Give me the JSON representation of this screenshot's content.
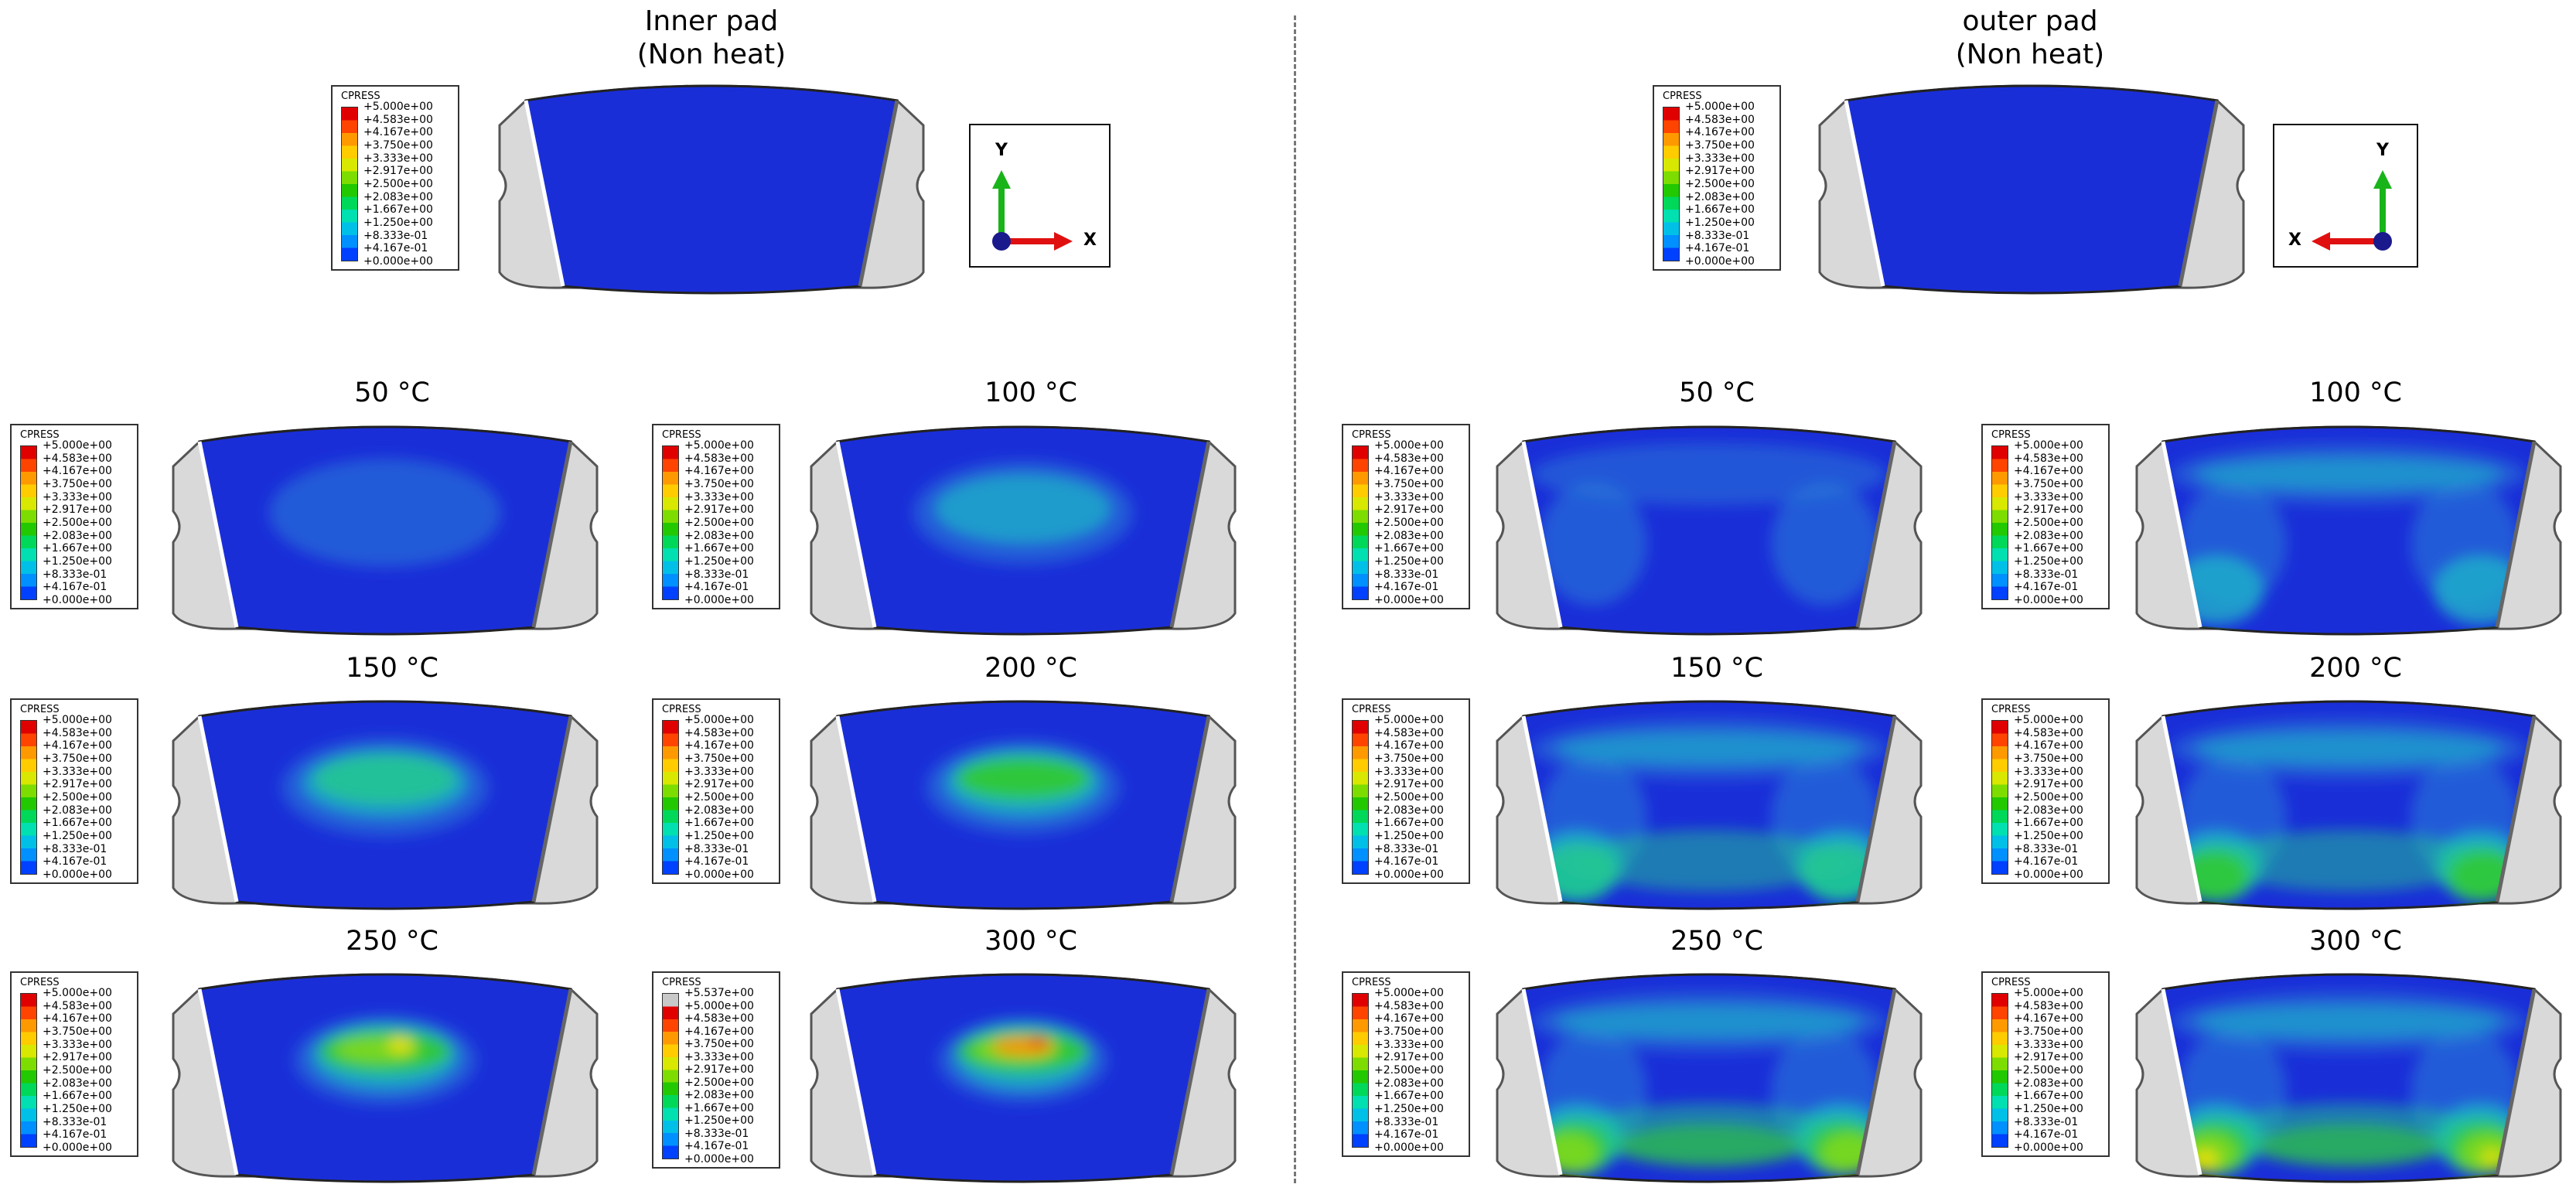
{
  "inner": {
    "title": [
      "Inner pad",
      "(Non heat)"
    ],
    "axes": {
      "y_label": "Y",
      "x_label": "X"
    },
    "temps": [
      "50 °C",
      "100 °C",
      "150 °C",
      "200 °C",
      "250 °C",
      "300 °C"
    ]
  },
  "outer": {
    "title": [
      "outer pad",
      "(Non heat)"
    ],
    "axes": {
      "y_label": "Y",
      "x_label": "X"
    },
    "temps": [
      "50 °C",
      "100 °C",
      "150 °C",
      "200 °C",
      "250 °C",
      "300 °C"
    ]
  },
  "legend": {
    "title": "CPRESS",
    "values": [
      "+5.000e+00",
      "+4.583e+00",
      "+4.167e+00",
      "+3.750e+00",
      "+3.333e+00",
      "+2.917e+00",
      "+2.500e+00",
      "+2.083e+00",
      "+1.667e+00",
      "+1.250e+00",
      "+8.333e-01",
      "+4.167e-01",
      "+0.000e+00"
    ],
    "values_300C_inner": [
      "+5.537e+00",
      "+5.000e+00",
      "+4.583e+00",
      "+4.167e+00",
      "+3.750e+00",
      "+3.333e+00",
      "+2.917e+00",
      "+2.500e+00",
      "+2.083e+00",
      "+1.667e+00",
      "+1.250e+00",
      "+8.333e-01",
      "+4.167e-01",
      "+0.000e+00"
    ],
    "colors": [
      "#e00000",
      "#ff4400",
      "#ff9900",
      "#ffcc00",
      "#d8e800",
      "#7ddc00",
      "#22c800",
      "#00d85a",
      "#00e0b0",
      "#00c0e8",
      "#0090ff",
      "#0040ff",
      "#0000cc"
    ],
    "over_color": "#c8c8c8"
  },
  "colors": {
    "background": "#1a2ed8",
    "pad_plate": "#d9d9d9",
    "axis_y": "#19b419",
    "axis_x": "#e01010",
    "axis_origin": "#1a1a8c"
  }
}
